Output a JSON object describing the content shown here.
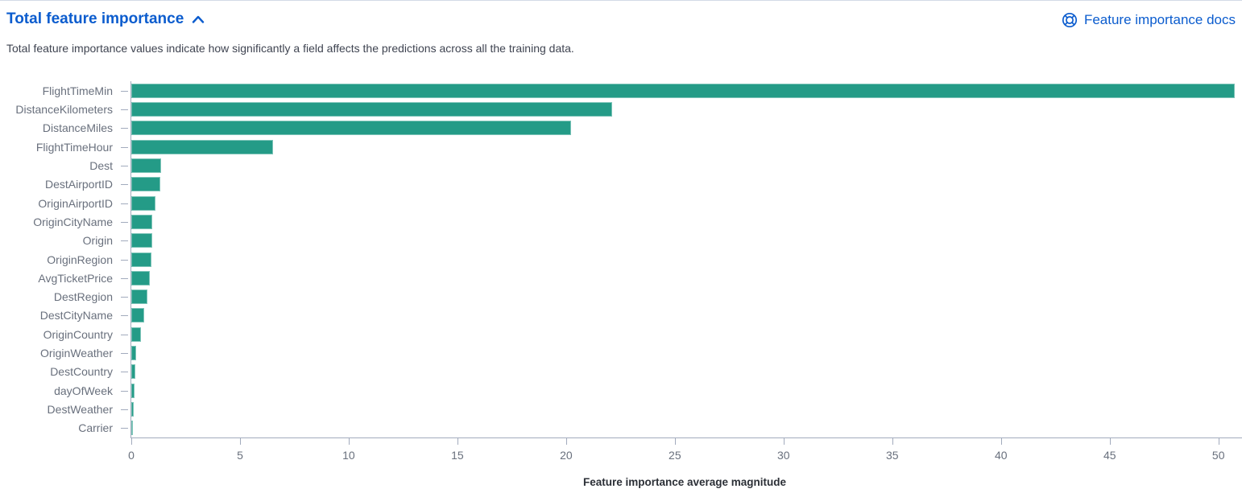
{
  "header": {
    "title": "Total feature importance",
    "collapse_icon": "chevron-up-icon",
    "docs_link_label": "Feature importance docs",
    "docs_icon": "life-ring-icon",
    "link_color": "#0b5cce"
  },
  "description": "Total feature importance values indicate how significantly a field affects the predictions across all the training data.",
  "chart_data": {
    "type": "bar",
    "orientation": "horizontal",
    "title": "",
    "categories": [
      "FlightTimeMin",
      "DistanceKilometers",
      "DistanceMiles",
      "FlightTimeHour",
      "Dest",
      "DestAirportID",
      "OriginAirportID",
      "OriginCityName",
      "Origin",
      "OriginRegion",
      "AvgTicketPrice",
      "DestRegion",
      "DestCityName",
      "OriginCountry",
      "OriginWeather",
      "DestCountry",
      "dayOfWeek",
      "DestWeather",
      "Carrier"
    ],
    "values": [
      50.77,
      22.11,
      20.22,
      6.52,
      1.36,
      1.33,
      1.1,
      0.97,
      0.95,
      0.91,
      0.86,
      0.74,
      0.61,
      0.46,
      0.21,
      0.19,
      0.15,
      0.12,
      0.05
    ],
    "xlabel": "Feature importance average magnitude",
    "ylabel": "",
    "xticks": [
      0,
      5,
      10,
      15,
      20,
      25,
      30,
      35,
      40,
      45,
      50
    ],
    "xlim": [
      0,
      50.9
    ],
    "grid": false,
    "legend": false,
    "bar_color": "#249b87",
    "bar_stroke": "rgba(255,255,255,0.4)",
    "axis_line_color": "#a2abbd",
    "tick_label_color": "#69707d",
    "axis_title_color": "#2b2f36"
  }
}
